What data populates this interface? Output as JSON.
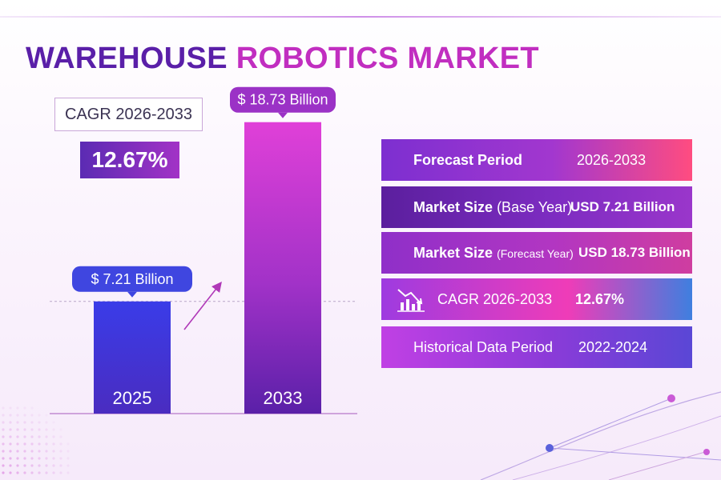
{
  "title": {
    "part1": "WAREHOUSE",
    "part2": "ROBOTICS MARKET"
  },
  "cagr_box": {
    "label": "CAGR 2026-2033",
    "value": "12.67%"
  },
  "colors": {
    "title_dark": "#5a1fa8",
    "title_pink": "#c12ec0",
    "bar_2025": "#3a32d6",
    "bar_2033": "#d33bd2"
  },
  "chart_data": {
    "type": "bar",
    "categories": [
      "2025",
      "2033"
    ],
    "values": [
      7.21,
      18.73
    ],
    "value_labels": [
      "$ 7.21 Billion",
      "$ 18.73 Billion"
    ],
    "unit": "USD Billion",
    "title": "Warehouse Robotics Market",
    "xlabel": "",
    "ylabel": "",
    "ylim": [
      0,
      20
    ],
    "grid": false,
    "legend": "none"
  },
  "info_rows": [
    {
      "label": "Forecast Period",
      "sub": "",
      "value": "2026-2033"
    },
    {
      "label": "Market Size",
      "sub": "(Base Year)",
      "value": "USD 7.21 Billion"
    },
    {
      "label": "Market Size",
      "sub": "(Forecast Year)",
      "value": "USD 18.73 Billion"
    },
    {
      "label": "CAGR 2026-2033",
      "sub": "",
      "value": "12.67%",
      "icon": "chart-decline-icon"
    },
    {
      "label": "Historical Data Period",
      "sub": "",
      "value": "2022-2024"
    }
  ]
}
